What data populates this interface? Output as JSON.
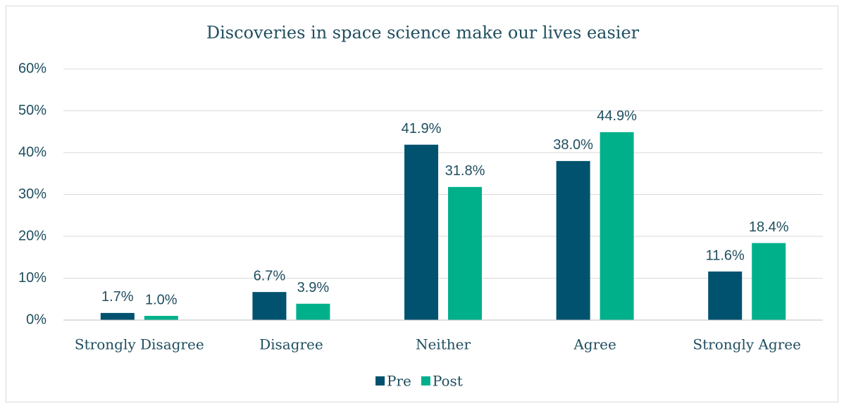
{
  "chart_data": {
    "type": "bar",
    "title": "Discoveries in space science make our lives easier",
    "categories": [
      "Strongly Disagree",
      "Disagree",
      "Neither",
      "Agree",
      "Strongly Agree"
    ],
    "series": [
      {
        "name": "Pre",
        "color": "#00526e",
        "values": [
          1.7,
          6.7,
          41.9,
          38.0,
          11.6
        ],
        "value_labels": [
          "1.7%",
          "6.7%",
          "41.9%",
          "38.0%",
          "11.6%"
        ]
      },
      {
        "name": "Post",
        "color": "#00b08b",
        "values": [
          1.0,
          3.9,
          31.8,
          44.9,
          18.4
        ],
        "value_labels": [
          "1.0%",
          "3.9%",
          "31.8%",
          "44.9%",
          "18.4%"
        ]
      }
    ],
    "ylim": [
      0,
      60
    ],
    "yticks": [
      {
        "value": 0,
        "label": "0%"
      },
      {
        "value": 10,
        "label": "10%"
      },
      {
        "value": 20,
        "label": "20%"
      },
      {
        "value": 30,
        "label": "30%"
      },
      {
        "value": 40,
        "label": "40%"
      },
      {
        "value": 50,
        "label": "50%"
      },
      {
        "value": 60,
        "label": "60%"
      }
    ],
    "grid": true,
    "legend": "bottom"
  }
}
